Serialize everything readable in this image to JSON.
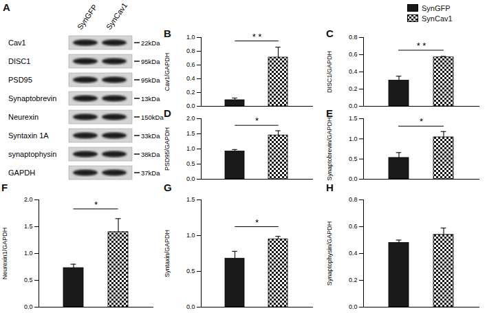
{
  "chart_data": [
    {
      "type": "bar",
      "title": "B",
      "ylabel": "Cav1/GAPDH",
      "tick_labels": "y",
      "ylim": [
        0,
        1.0
      ],
      "yticks": [
        {
          "value": 0,
          "label": "0.0"
        },
        0.2,
        0.4,
        0.6,
        0.8,
        {
          "value": 1.0,
          "label": "1.0"
        }
      ],
      "series": [
        {
          "name": "SynGFP",
          "color": "#1a1a1a",
          "values": [
            0.09
          ],
          "error": [
            0.03
          ]
        },
        {
          "name": "SynCav1",
          "color": "#1a1a1a",
          "values": [
            0.71
          ],
          "error": [
            0.15
          ]
        }
      ],
      "annotations": [
        {
          "text": "* *"
        }
      ]
    },
    {
      "type": "bar",
      "title": "C",
      "ylabel": "DISC1/GAPDH",
      "tick_labels": "y",
      "legend": "top right",
      "ylim": [
        0,
        0.8
      ],
      "yticks": [
        {
          "value": 0,
          "label": "0.0"
        },
        0.2,
        0.4,
        0.6,
        0.8
      ],
      "series": [
        {
          "name": "SynGFP",
          "color": "#1a1a1a",
          "values": [
            0.3
          ],
          "error": [
            0.05
          ]
        },
        {
          "name": "SynCav1",
          "color": "#1a1a1a",
          "values": [
            0.57
          ],
          "error": [
            0.01
          ]
        }
      ],
      "annotations": [
        {
          "text": "* *"
        }
      ]
    },
    {
      "type": "bar",
      "title": "D",
      "ylabel": "PSD95/GAPDH",
      "tick_labels": "y",
      "ylim": [
        0,
        2.0
      ],
      "yticks": [
        {
          "value": 0,
          "label": "0.0"
        },
        0.5,
        {
          "value": 1.0,
          "label": "1.0"
        },
        1.5,
        {
          "value": 2.0,
          "label": "2.0"
        }
      ],
      "series": [
        {
          "name": "SynGFP",
          "color": "#1a1a1a",
          "values": [
            0.92
          ],
          "error": [
            0.06
          ]
        },
        {
          "name": "SynCav1",
          "color": "#1a1a1a",
          "values": [
            1.45
          ],
          "error": [
            0.15
          ]
        }
      ],
      "annotations": [
        {
          "text": "*"
        }
      ]
    },
    {
      "type": "bar",
      "title": "E",
      "ylabel": "Synaptobrevin/GAPDH",
      "tick_labels": "y",
      "ylim": [
        0,
        1.5
      ],
      "yticks": [
        {
          "value": 0,
          "label": "0.0"
        },
        0.5,
        {
          "value": 1.0,
          "label": "1.0"
        },
        1.5
      ],
      "series": [
        {
          "name": "SynGFP",
          "color": "#1a1a1a",
          "values": [
            0.53
          ],
          "error": [
            0.13
          ]
        },
        {
          "name": "SynCav1",
          "color": "#1a1a1a",
          "values": [
            1.04
          ],
          "error": [
            0.14
          ]
        }
      ],
      "annotations": [
        {
          "text": "*"
        }
      ]
    },
    {
      "type": "bar",
      "title": "F",
      "ylabel": "Neurexin1/GAPDH",
      "tick_labels": "y",
      "ylim": [
        0,
        2.0
      ],
      "yticks": [
        {
          "value": 0,
          "label": "0.0"
        },
        0.5,
        {
          "value": 1.0,
          "label": "1.0"
        },
        1.5,
        {
          "value": 2.0,
          "label": "2.0"
        }
      ],
      "series": [
        {
          "name": "SynGFP",
          "color": "#1a1a1a",
          "values": [
            0.73
          ],
          "error": [
            0.07
          ]
        },
        {
          "name": "SynCav1",
          "color": "#1a1a1a",
          "values": [
            1.4
          ],
          "error": [
            0.25
          ]
        }
      ],
      "annotations": [
        {
          "text": "*"
        }
      ]
    },
    {
      "type": "bar",
      "title": "G",
      "ylabel": "Syntaxin/GAPDH",
      "tick_labels": "y",
      "ylim": [
        0,
        1.5
      ],
      "yticks": [
        {
          "value": 0,
          "label": "0.0"
        },
        0.5,
        {
          "value": 1.0,
          "label": "1.0"
        },
        1.5
      ],
      "series": [
        {
          "name": "SynGFP",
          "color": "#1a1a1a",
          "values": [
            0.68
          ],
          "error": [
            0.1
          ]
        },
        {
          "name": "SynCav1",
          "color": "#1a1a1a",
          "values": [
            0.95
          ],
          "error": [
            0.04
          ]
        }
      ],
      "annotations": [
        {
          "text": "*"
        }
      ]
    },
    {
      "type": "bar",
      "title": "H",
      "ylabel": "Synaptophysin/GAPDH",
      "tick_labels": "y",
      "ylim": [
        0,
        0.8
      ],
      "yticks": [
        {
          "value": 0,
          "label": "0.0"
        },
        0.2,
        0.4,
        0.6,
        0.8
      ],
      "series": [
        {
          "name": "SynGFP",
          "color": "#1a1a1a",
          "values": [
            0.48
          ],
          "error": [
            0.02
          ]
        },
        {
          "name": "SynCav1",
          "color": "#1a1a1a",
          "values": [
            0.54
          ],
          "error": [
            0.05
          ]
        }
      ]
    }
  ],
  "blot": {
    "title": "A",
    "lanes": [
      "SynGFP",
      "SynCav1"
    ],
    "rows": [
      {
        "label": "Cav1",
        "size": "22kDa"
      },
      {
        "label": "DISC1",
        "size": "95kDa"
      },
      {
        "label": "PSD95",
        "size": "95kDa"
      },
      {
        "label": "Synaptobrevin",
        "size": "13kDa"
      },
      {
        "label": "Neurexin",
        "size": "150kDa"
      },
      {
        "label": "Syntaxin 1A",
        "size": "33kDa"
      },
      {
        "label": "synaptophysin",
        "size": "38kDa"
      },
      {
        "label": "GAPDH",
        "size": "37kDa"
      }
    ]
  }
}
